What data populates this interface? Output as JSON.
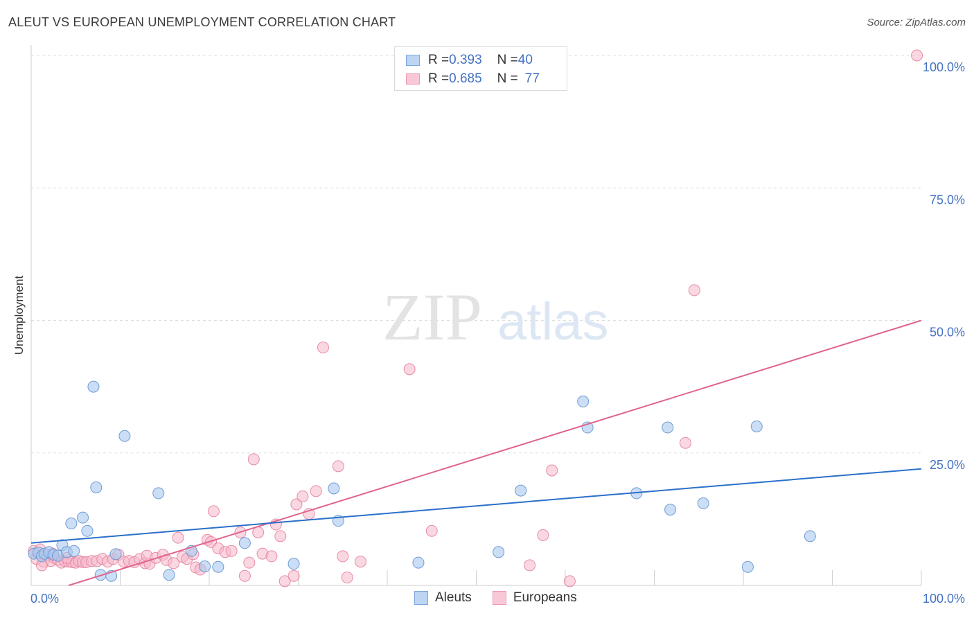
{
  "header": {
    "title": "ALEUT VS EUROPEAN UNEMPLOYMENT CORRELATION CHART",
    "source": "Source: ZipAtlas.com"
  },
  "legend_top": {
    "rows": [
      {
        "r_label": "R = ",
        "r_value": "0.393",
        "n_label": "N = ",
        "n_value": "40"
      },
      {
        "r_label": "R = ",
        "r_value": "0.685",
        "n_label": "N = ",
        "n_value": "77"
      }
    ]
  },
  "legend_bottom": {
    "items": [
      "Aleuts",
      "Europeans"
    ]
  },
  "watermark": {
    "part1": "ZIP",
    "part2": "atlas"
  },
  "colors": {
    "aleuts_fill": "#a9c8ef",
    "aleuts_stroke": "#6f9bd6",
    "aleuts_line": "#2a6fcb",
    "europeans_fill": "#f6b8cb",
    "europeans_stroke": "#e88aa6",
    "europeans_line": "#e0648e",
    "tick_text": "#4472c4",
    "grid": "#dddddd"
  },
  "chart_data": {
    "type": "scatter",
    "title": "ALEUT VS EUROPEAN UNEMPLOYMENT CORRELATION CHART",
    "xlabel": "",
    "ylabel": "Unemployment",
    "xlim": [
      0,
      100
    ],
    "ylim": [
      0,
      100
    ],
    "x_tick_labels": [
      "0.0%",
      "100.0%"
    ],
    "y_ticks": [
      25,
      50,
      75,
      100
    ],
    "y_tick_labels": [
      "25.0%",
      "50.0%",
      "75.0%",
      "100.0%"
    ],
    "grid": true,
    "legend_position": "top-center",
    "series": [
      {
        "name": "Aleuts",
        "r": 0.393,
        "n": 40,
        "trend": {
          "x": [
            0,
            100
          ],
          "y": [
            8.0,
            22.0
          ]
        },
        "points": [
          [
            0.3,
            6.0
          ],
          [
            0.8,
            6.2
          ],
          [
            1.2,
            5.5
          ],
          [
            1.5,
            6.0
          ],
          [
            2.0,
            6.3
          ],
          [
            2.5,
            5.8
          ],
          [
            3.0,
            5.6
          ],
          [
            3.5,
            7.6
          ],
          [
            4.0,
            6.3
          ],
          [
            4.8,
            6.5
          ],
          [
            4.5,
            11.7
          ],
          [
            5.8,
            12.8
          ],
          [
            6.3,
            10.3
          ],
          [
            7.0,
            37.5
          ],
          [
            7.3,
            18.5
          ],
          [
            7.8,
            2.0
          ],
          [
            9.0,
            1.8
          ],
          [
            9.5,
            5.9
          ],
          [
            10.5,
            28.2
          ],
          [
            14.3,
            17.4
          ],
          [
            15.5,
            2.0
          ],
          [
            18.0,
            6.5
          ],
          [
            19.5,
            3.6
          ],
          [
            21.0,
            3.5
          ],
          [
            24.0,
            8.0
          ],
          [
            29.5,
            4.1
          ],
          [
            34.0,
            18.3
          ],
          [
            34.5,
            12.2
          ],
          [
            43.5,
            4.3
          ],
          [
            52.5,
            6.3
          ],
          [
            55.0,
            17.9
          ],
          [
            62.0,
            34.7
          ],
          [
            62.5,
            29.8
          ],
          [
            68.0,
            17.4
          ],
          [
            71.5,
            29.8
          ],
          [
            71.8,
            14.3
          ],
          [
            75.5,
            15.5
          ],
          [
            81.5,
            30.0
          ],
          [
            80.5,
            3.5
          ],
          [
            87.5,
            9.3
          ]
        ]
      },
      {
        "name": "Europeans",
        "r": 0.685,
        "n": 77,
        "trend": {
          "x": [
            4.2,
            100
          ],
          "y": [
            0,
            50.0
          ]
        },
        "points": [
          [
            0.3,
            6.5
          ],
          [
            0.6,
            5.0
          ],
          [
            1.0,
            6.8
          ],
          [
            1.4,
            4.5
          ],
          [
            1.8,
            5.8
          ],
          [
            2.2,
            4.6
          ],
          [
            2.6,
            5.2
          ],
          [
            3.0,
            4.8
          ],
          [
            3.4,
            4.3
          ],
          [
            3.8,
            4.6
          ],
          [
            4.2,
            4.5
          ],
          [
            4.6,
            4.4
          ],
          [
            5.0,
            4.3
          ],
          [
            5.4,
            4.6
          ],
          [
            5.8,
            4.4
          ],
          [
            6.2,
            4.4
          ],
          [
            6.8,
            4.6
          ],
          [
            7.4,
            4.6
          ],
          [
            8.0,
            5.0
          ],
          [
            8.6,
            4.5
          ],
          [
            9.2,
            5.0
          ],
          [
            9.8,
            5.8
          ],
          [
            10.4,
            4.5
          ],
          [
            11.0,
            4.6
          ],
          [
            11.6,
            4.4
          ],
          [
            12.2,
            5.0
          ],
          [
            12.8,
            4.2
          ],
          [
            13.3,
            4.1
          ],
          [
            13.0,
            5.6
          ],
          [
            14.0,
            5.2
          ],
          [
            14.8,
            5.8
          ],
          [
            15.2,
            4.8
          ],
          [
            16.0,
            4.2
          ],
          [
            16.5,
            9.0
          ],
          [
            17.0,
            5.4
          ],
          [
            17.5,
            5.0
          ],
          [
            18.2,
            5.9
          ],
          [
            18.5,
            3.4
          ],
          [
            19.0,
            3.0
          ],
          [
            19.8,
            8.6
          ],
          [
            20.2,
            8.2
          ],
          [
            20.5,
            14.0
          ],
          [
            21.0,
            7.0
          ],
          [
            21.8,
            6.3
          ],
          [
            22.5,
            6.5
          ],
          [
            23.5,
            10.0
          ],
          [
            24.0,
            1.8
          ],
          [
            24.5,
            4.3
          ],
          [
            25.0,
            23.8
          ],
          [
            25.5,
            10.0
          ],
          [
            26.0,
            6.0
          ],
          [
            27.0,
            5.5
          ],
          [
            27.5,
            11.5
          ],
          [
            28.0,
            9.3
          ],
          [
            28.5,
            0.8
          ],
          [
            29.5,
            1.8
          ],
          [
            29.8,
            15.3
          ],
          [
            30.5,
            16.8
          ],
          [
            31.2,
            13.5
          ],
          [
            32.0,
            17.8
          ],
          [
            32.8,
            44.9
          ],
          [
            34.5,
            22.5
          ],
          [
            35.0,
            5.5
          ],
          [
            35.5,
            1.5
          ],
          [
            37.0,
            4.5
          ],
          [
            42.5,
            40.8
          ],
          [
            45.0,
            10.3
          ],
          [
            56.0,
            3.8
          ],
          [
            57.5,
            9.5
          ],
          [
            58.5,
            21.7
          ],
          [
            60.5,
            0.8
          ],
          [
            73.5,
            26.9
          ],
          [
            74.5,
            55.7
          ],
          [
            1.2,
            3.8
          ],
          [
            4.0,
            5.2
          ],
          [
            2.4,
            6.0
          ],
          [
            99.5,
            100.0
          ]
        ]
      }
    ]
  }
}
